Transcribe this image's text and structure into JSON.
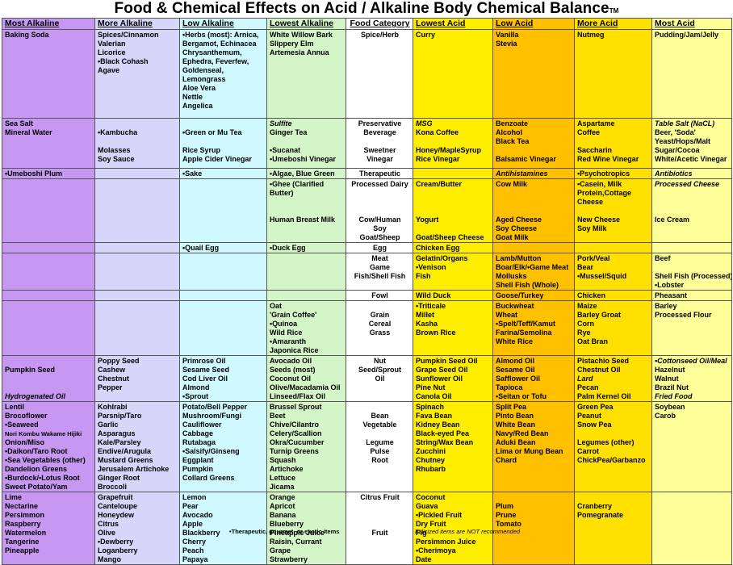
{
  "title": "Food & Chemical Effects on Acid / Alkaline Body Chemical Balance",
  "title_mark": "TM",
  "columns": [
    "Most Alkaline",
    "More Alkaline",
    "Low Alkaline",
    "Lowest Alkaline",
    "Food Category",
    "Lowest Acid",
    "Low Acid",
    "More Acid",
    "Most Acid"
  ],
  "colors": {
    "most_alkaline": "#c698f2",
    "more_alkaline": "#d6d6fa",
    "low_alkaline": "#cff8ff",
    "lowest_alkaline": "#d4f5c8",
    "food_category": "#ffffff",
    "lowest_acid": "#ffee00",
    "low_acid": "#ffc000",
    "more_acid": "#ffe000",
    "most_acid": "#ffff99"
  },
  "rows": [
    [
      [
        "Baking Soda"
      ],
      [
        "Spices/Cinnamon",
        "Valerian",
        "Licorice",
        "•Black Cohash",
        "Agave"
      ],
      [
        "•Herbs (most): Arnica,",
        "Bergamot, Echinacea",
        "Chrysanthemum,",
        "Ephedra, Feverfew,",
        "Goldenseal,",
        "Lemongrass",
        "Aloe Vera",
        "Nettle",
        "Angelica"
      ],
      [
        "White Willow Bark",
        "Slippery Elm",
        "Artemesia Annua"
      ],
      [
        "Spice/Herb"
      ],
      [
        "Curry"
      ],
      [
        "Vanilla",
        "Stevia"
      ],
      [
        "Nutmeg"
      ],
      [
        "Pudding/Jam/Jelly"
      ]
    ],
    [
      [
        "Sea Salt",
        "Mineral Water"
      ],
      [
        "",
        "•Kambucha",
        "",
        "Molasses",
        "Soy Sauce"
      ],
      [
        "",
        "•Green or Mu Tea",
        "",
        "Rice Syrup",
        "Apple Cider Vinegar"
      ],
      [
        "*Sulfite",
        "Ginger Tea",
        "",
        "•Sucanat",
        "•Umeboshi Vinegar"
      ],
      [
        "Preservative",
        "Beverage",
        "",
        "Sweetner",
        "Vinegar"
      ],
      [
        "*MSG",
        "Kona Coffee",
        "",
        "Honey/MapleSyrup",
        "Rice Vinegar"
      ],
      [
        "Benzoate",
        "Alcohol",
        "Black Tea",
        "",
        "Balsamic Vinegar"
      ],
      [
        "Aspartame",
        "Coffee",
        "",
        "Saccharin",
        "Red Wine Vinegar"
      ],
      [
        "*Table Salt (NaCL)",
        "Beer, 'Soda'",
        "Yeast/Hops/Malt",
        "Sugar/Cocoa",
        "White/Acetic Vinegar"
      ]
    ],
    [
      [
        "•Umeboshi Plum"
      ],
      [
        ""
      ],
      [
        "•Sake"
      ],
      [
        "•Algae, Blue Green"
      ],
      [
        "Therapeutic"
      ],
      [
        ""
      ],
      [
        "*Antihistamines"
      ],
      [
        "•Psychotropics"
      ],
      [
        "*Antibiotics"
      ]
    ],
    [
      [
        ""
      ],
      [
        ""
      ],
      [
        ""
      ],
      [
        "•Ghee (Clarified",
        "Butter)",
        "",
        "",
        "Human Breast Milk"
      ],
      [
        "Processed Dairy",
        "",
        "",
        "",
        "Cow/Human",
        "Soy",
        "Goat/Sheep"
      ],
      [
        "Cream/Butter",
        "",
        "",
        "",
        "Yogurt",
        "",
        "Goat/Sheep Cheese"
      ],
      [
        "Cow Milk",
        "",
        "",
        "",
        "Aged Cheese",
        "Soy Cheese",
        "Goat Milk"
      ],
      [
        "•Casein, Milk",
        "Protein,Cottage",
        "Cheese",
        "",
        "New Cheese",
        "Soy Milk"
      ],
      [
        "*Processed Cheese",
        "",
        "",
        "",
        "Ice Cream"
      ]
    ],
    [
      [
        ""
      ],
      [
        ""
      ],
      [
        "•Quail Egg"
      ],
      [
        "•Duck Egg"
      ],
      [
        "Egg"
      ],
      [
        "Chicken Egg"
      ],
      [
        ""
      ],
      [
        ""
      ],
      [
        ""
      ]
    ],
    [
      [
        ""
      ],
      [
        ""
      ],
      [
        ""
      ],
      [
        ""
      ],
      [
        "Meat",
        "Game",
        "Fish/Shell Fish"
      ],
      [
        "Gelatin/Organs",
        "•Venison",
        "Fish"
      ],
      [
        "Lamb/Mutton",
        "Boar/Elk/•Game Meat",
        "Mollusks",
        "Shell Fish (Whole)"
      ],
      [
        "Pork/Veal",
        "Bear",
        "•Mussel/Squid"
      ],
      [
        "Beef",
        "",
        "Shell Fish (Processed)",
        "•Lobster"
      ]
    ],
    [
      [
        ""
      ],
      [
        ""
      ],
      [
        ""
      ],
      [
        ""
      ],
      [
        "Fowl"
      ],
      [
        "Wild Duck"
      ],
      [
        "Goose/Turkey"
      ],
      [
        "Chicken"
      ],
      [
        "Pheasant"
      ]
    ],
    [
      [
        ""
      ],
      [
        ""
      ],
      [
        ""
      ],
      [
        "Oat",
        "'Grain Coffee'",
        "•Quinoa",
        "Wild Rice",
        "•Amaranth",
        "Japonica Rice"
      ],
      [
        "",
        "Grain",
        "Cereal",
        "Grass"
      ],
      [
        "•Triticale",
        "Millet",
        "Kasha",
        "Brown Rice"
      ],
      [
        "Buckwheat",
        "Wheat",
        "•Spelt/Teff/Kamut",
        "Farina/Semolina",
        "White Rice"
      ],
      [
        "Maize",
        "Barley Groat",
        "Corn",
        "Rye",
        "Oat Bran"
      ],
      [
        "Barley",
        "Processed Flour"
      ]
    ],
    [
      [
        "",
        "Pumpkin Seed",
        "",
        "",
        "*Hydrogenated Oil"
      ],
      [
        "Poppy Seed",
        "Cashew",
        "Chestnut",
        "Pepper"
      ],
      [
        "Primrose Oil",
        "Sesame Seed",
        "Cod Liver Oil",
        "Almond",
        "•Sprout"
      ],
      [
        "Avocado Oil",
        "Seeds (most)",
        "Coconut Oil",
        "Olive/Macadamia Oil",
        "Linseed/Flax Oil"
      ],
      [
        "Nut",
        "Seed/Sprout",
        "Oil"
      ],
      [
        "Pumpkin Seed Oil",
        "Grape Seed Oil",
        "Sunflower Oil",
        "Pine Nut",
        "Canola Oil"
      ],
      [
        "Almond Oil",
        "Sesame Oil",
        "Safflower Oil",
        "Tapioca",
        "•Seitan or Tofu"
      ],
      [
        "Pistachio Seed",
        "Chestnut Oil",
        "*Lard",
        "Pecan",
        "Palm Kernel Oil"
      ],
      [
        "*•Cottonseed Oil/Meal",
        "Hazelnut",
        "Walnut",
        "Brazil Nut",
        "*Fried Food"
      ]
    ],
    [
      [
        "Lentil",
        "Brocoflower",
        "•Seaweed",
        "Nori Kombu Wakame Hijiki",
        "Onion/Miso",
        "•Daikon/Taro Root",
        "•Sea Vegetables (other)",
        "Dandelion Greens",
        "•Burdock/•Lotus Root",
        "Sweet Potato/Yam"
      ],
      [
        "Kohlrabi",
        "Parsnip/Taro",
        "Garlic",
        "Asparagus",
        "Kale/Parsley",
        "Endive/Arugula",
        "Mustard Greens",
        "Jerusalem Artichoke",
        "Ginger Root",
        "Broccoli"
      ],
      [
        "Potato/Bell Pepper",
        "Mushroom/Fungi",
        "Cauliflower",
        "Cabbage",
        "Rutabaga",
        "•Salsify/Ginseng",
        "Eggplant",
        "Pumpkin",
        "Collard Greens"
      ],
      [
        "Brussel Sprout",
        "Beet",
        "Chive/Cilantro",
        "Celery/Scallion",
        "Okra/Cucumber",
        "Turnip Greens",
        "Squash",
        "Artichoke",
        "Lettuce",
        "Jicama"
      ],
      [
        "",
        "Bean",
        "Vegetable",
        "",
        "Legume",
        "Pulse",
        "Root"
      ],
      [
        "Spinach",
        "Fava Bean",
        "Kidney Bean",
        "Black-eyed Pea",
        "String/Wax Bean",
        "Zucchini",
        "Chutney",
        "Rhubarb"
      ],
      [
        "Split Pea",
        "Pinto Bean",
        "White Bean",
        "Navy/Red Bean",
        "Aduki Bean",
        "Lima or Mung Bean",
        "Chard"
      ],
      [
        "Green Pea",
        "Peanut",
        "Snow Pea",
        "",
        "Legumes (other)",
        "Carrot",
        "ChickPea/Garbanzo"
      ],
      [
        "Soybean",
        "Carob"
      ]
    ],
    [
      [
        "Lime",
        "Nectarine",
        "Persimmon",
        "Raspberry",
        "Watermelon",
        "Tangerine",
        "Pineapple"
      ],
      [
        "Grapefruit",
        "Canteloupe",
        "Honeydew",
        "Citrus",
        "Olive",
        "•Dewberry",
        "Loganberry",
        "Mango"
      ],
      [
        "Lemon",
        "Pear",
        "Avocado",
        "Apple",
        "Blackberry",
        "Cherry",
        "Peach",
        "Papaya"
      ],
      [
        "Orange",
        "Apricot",
        "Banana",
        "Blueberry",
        "Pineapple Juice",
        "Raisin, Currant",
        "Grape",
        "Strawberry"
      ],
      [
        "Citrus Fruit",
        "",
        "",
        "",
        "Fruit"
      ],
      [
        "Coconut",
        "Guava",
        "•Pickled Fruit",
        "Dry Fruit",
        "Fig",
        "Persimmon Juice",
        "•Cherimoya",
        "Date"
      ],
      [
        "",
        "Plum",
        "Prune",
        "Tomato"
      ],
      [
        "",
        "Cranberry",
        "Pomegranate"
      ],
      [
        ""
      ]
    ]
  ],
  "footer": {
    "left": "•Therapeutic, gourmet, or exotic items",
    "right": "Italicized items are NOT recommended"
  }
}
